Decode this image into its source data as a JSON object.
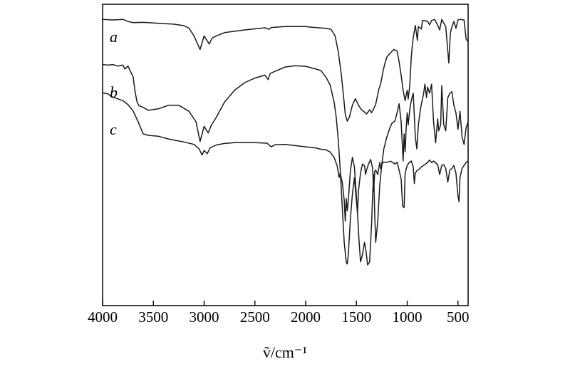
{
  "chart_data": {
    "type": "line",
    "title": "",
    "xlabel": "ṽ/cm⁻¹",
    "ylabel": "",
    "xlim": [
      4000,
      400
    ],
    "x_reversed": true,
    "x_ticks": [
      4000,
      3500,
      3000,
      2500,
      2000,
      1500,
      1000,
      500
    ],
    "ylim": [
      0,
      100
    ],
    "y_ticks_shown": false,
    "grid": false,
    "legend": "none",
    "line_color": "#1a1a1a",
    "series": [
      {
        "name": "a",
        "points": [
          [
            4000,
            95
          ],
          [
            3900,
            94.8
          ],
          [
            3800,
            95
          ],
          [
            3750,
            94.3
          ],
          [
            3700,
            93.9
          ],
          [
            3600,
            94
          ],
          [
            3400,
            93.6
          ],
          [
            3300,
            93.4
          ],
          [
            3200,
            92.9
          ],
          [
            3150,
            92.1
          ],
          [
            3100,
            89.5
          ],
          [
            3040,
            85
          ],
          [
            3000,
            89.5
          ],
          [
            2950,
            86.8
          ],
          [
            2920,
            88.8
          ],
          [
            2880,
            89.5
          ],
          [
            2800,
            90.6
          ],
          [
            2600,
            91.5
          ],
          [
            2400,
            92.2
          ],
          [
            2360,
            91.7
          ],
          [
            2340,
            92.3
          ],
          [
            2200,
            92.6
          ],
          [
            2000,
            92.6
          ],
          [
            1950,
            92.4
          ],
          [
            1800,
            92
          ],
          [
            1750,
            91.7
          ],
          [
            1710,
            89.5
          ],
          [
            1680,
            84.5
          ],
          [
            1650,
            77
          ],
          [
            1630,
            70.6
          ],
          [
            1610,
            63.5
          ],
          [
            1590,
            61.2
          ],
          [
            1570,
            62.5
          ],
          [
            1540,
            66.5
          ],
          [
            1510,
            68.7
          ],
          [
            1480,
            66.5
          ],
          [
            1450,
            65
          ],
          [
            1420,
            64.2
          ],
          [
            1400,
            63.6
          ],
          [
            1370,
            65
          ],
          [
            1350,
            64
          ],
          [
            1330,
            65.4
          ],
          [
            1310,
            66.8
          ],
          [
            1280,
            71.7
          ],
          [
            1260,
            73.8
          ],
          [
            1240,
            77.5
          ],
          [
            1220,
            80.4
          ],
          [
            1200,
            82.5
          ],
          [
            1170,
            83.7
          ],
          [
            1130,
            85
          ],
          [
            1100,
            84.5
          ],
          [
            1080,
            81
          ],
          [
            1060,
            76.5
          ],
          [
            1040,
            71.4
          ],
          [
            1020,
            68
          ],
          [
            1000,
            71.5
          ],
          [
            990,
            68.5
          ],
          [
            975,
            73
          ],
          [
            960,
            82.3
          ],
          [
            950,
            86
          ],
          [
            940,
            89
          ],
          [
            920,
            93
          ],
          [
            900,
            88
          ],
          [
            890,
            92.6
          ],
          [
            860,
            91.8
          ],
          [
            850,
            94.6
          ],
          [
            800,
            94.4
          ],
          [
            780,
            93.2
          ],
          [
            760,
            94.6
          ],
          [
            730,
            95
          ],
          [
            700,
            93
          ],
          [
            680,
            91.5
          ],
          [
            660,
            95
          ],
          [
            620,
            92.6
          ],
          [
            600,
            84.5
          ],
          [
            590,
            80.5
          ],
          [
            575,
            90.5
          ],
          [
            560,
            92.4
          ],
          [
            540,
            94.3
          ],
          [
            520,
            92
          ],
          [
            500,
            94.8
          ],
          [
            480,
            95
          ],
          [
            440,
            94.8
          ],
          [
            420,
            88.5
          ],
          [
            400,
            87.5
          ]
        ]
      },
      {
        "name": "b",
        "points": [
          [
            4000,
            80
          ],
          [
            3950,
            79.8
          ],
          [
            3900,
            80
          ],
          [
            3850,
            79.5
          ],
          [
            3800,
            79.8
          ],
          [
            3780,
            78.5
          ],
          [
            3750,
            79.5
          ],
          [
            3730,
            78
          ],
          [
            3700,
            76
          ],
          [
            3680,
            71
          ],
          [
            3660,
            67.5
          ],
          [
            3640,
            66.3
          ],
          [
            3600,
            65.8
          ],
          [
            3550,
            64.8
          ],
          [
            3450,
            65.3
          ],
          [
            3350,
            66.5
          ],
          [
            3250,
            66.5
          ],
          [
            3150,
            64.5
          ],
          [
            3080,
            61
          ],
          [
            3040,
            54.5
          ],
          [
            3000,
            59.5
          ],
          [
            2960,
            57.3
          ],
          [
            2930,
            59.8
          ],
          [
            2880,
            62.5
          ],
          [
            2800,
            67.5
          ],
          [
            2700,
            71.5
          ],
          [
            2600,
            74
          ],
          [
            2500,
            75.5
          ],
          [
            2400,
            76.5
          ],
          [
            2370,
            75
          ],
          [
            2350,
            77
          ],
          [
            2300,
            77.8
          ],
          [
            2200,
            79.2
          ],
          [
            2100,
            79.6
          ],
          [
            2000,
            79.4
          ],
          [
            1900,
            78.5
          ],
          [
            1850,
            78
          ],
          [
            1800,
            75.8
          ],
          [
            1760,
            73.3
          ],
          [
            1720,
            67.6
          ],
          [
            1700,
            62.7
          ],
          [
            1680,
            55.5
          ],
          [
            1660,
            45.5
          ],
          [
            1640,
            33
          ],
          [
            1620,
            21
          ],
          [
            1600,
            14.3
          ],
          [
            1590,
            13.8
          ],
          [
            1580,
            17
          ],
          [
            1560,
            28.5
          ],
          [
            1540,
            37
          ],
          [
            1520,
            42.4
          ],
          [
            1510,
            38.5
          ],
          [
            1490,
            31
          ],
          [
            1475,
            22
          ],
          [
            1460,
            14.5
          ],
          [
            1440,
            17
          ],
          [
            1420,
            21
          ],
          [
            1405,
            18
          ],
          [
            1390,
            13.5
          ],
          [
            1370,
            14.5
          ],
          [
            1350,
            27.5
          ],
          [
            1340,
            37
          ],
          [
            1330,
            43.5
          ],
          [
            1320,
            30.5
          ],
          [
            1310,
            21
          ],
          [
            1290,
            28
          ],
          [
            1270,
            40
          ],
          [
            1250,
            47
          ],
          [
            1230,
            52
          ],
          [
            1200,
            56
          ],
          [
            1170,
            59
          ],
          [
            1150,
            60.5
          ],
          [
            1120,
            61.3
          ],
          [
            1100,
            64
          ],
          [
            1080,
            67
          ],
          [
            1060,
            61
          ],
          [
            1050,
            54.5
          ],
          [
            1040,
            48
          ],
          [
            1030,
            57
          ],
          [
            1020,
            51
          ],
          [
            1010,
            59
          ],
          [
            1000,
            64
          ],
          [
            990,
            60
          ],
          [
            975,
            65
          ],
          [
            960,
            68
          ],
          [
            940,
            70.5
          ],
          [
            920,
            56
          ],
          [
            905,
            52
          ],
          [
            890,
            60
          ],
          [
            870,
            65
          ],
          [
            860,
            67
          ],
          [
            840,
            70
          ],
          [
            825,
            73.5
          ],
          [
            810,
            69
          ],
          [
            800,
            72.5
          ],
          [
            780,
            70.5
          ],
          [
            760,
            73.5
          ],
          [
            740,
            61
          ],
          [
            720,
            54
          ],
          [
            700,
            62
          ],
          [
            690,
            58
          ],
          [
            670,
            60
          ],
          [
            660,
            73
          ],
          [
            640,
            60
          ],
          [
            620,
            58
          ],
          [
            600,
            69
          ],
          [
            580,
            70.5
          ],
          [
            560,
            71
          ],
          [
            540,
            66.5
          ],
          [
            520,
            64
          ],
          [
            500,
            58.5
          ],
          [
            480,
            64.5
          ],
          [
            460,
            56
          ],
          [
            440,
            53.5
          ],
          [
            420,
            59
          ],
          [
            400,
            61
          ]
        ]
      },
      {
        "name": "c",
        "points": [
          [
            4000,
            70.6
          ],
          [
            3950,
            70.3
          ],
          [
            3900,
            69.2
          ],
          [
            3850,
            68.6
          ],
          [
            3800,
            68
          ],
          [
            3750,
            66.7
          ],
          [
            3700,
            64.6
          ],
          [
            3650,
            61
          ],
          [
            3600,
            57
          ],
          [
            3550,
            56.5
          ],
          [
            3450,
            56.2
          ],
          [
            3350,
            55.3
          ],
          [
            3200,
            54.3
          ],
          [
            3100,
            53.5
          ],
          [
            3050,
            52
          ],
          [
            3020,
            50
          ],
          [
            3000,
            51.5
          ],
          [
            2970,
            50.4
          ],
          [
            2940,
            52.4
          ],
          [
            2880,
            53.3
          ],
          [
            2800,
            53.8
          ],
          [
            2700,
            54.1
          ],
          [
            2500,
            54.1
          ],
          [
            2380,
            53.9
          ],
          [
            2340,
            52.7
          ],
          [
            2300,
            53.4
          ],
          [
            2200,
            53.5
          ],
          [
            2000,
            52.7
          ],
          [
            1900,
            52.3
          ],
          [
            1850,
            51.9
          ],
          [
            1800,
            51.7
          ],
          [
            1760,
            51
          ],
          [
            1720,
            49.2
          ],
          [
            1690,
            46.4
          ],
          [
            1670,
            42.5
          ],
          [
            1660,
            44
          ],
          [
            1640,
            41
          ],
          [
            1620,
            35
          ],
          [
            1610,
            28
          ],
          [
            1600,
            35.5
          ],
          [
            1590,
            31.5
          ],
          [
            1580,
            35
          ],
          [
            1560,
            44.5
          ],
          [
            1540,
            49.2
          ],
          [
            1520,
            46
          ],
          [
            1500,
            36
          ],
          [
            1490,
            30.5
          ],
          [
            1480,
            38
          ],
          [
            1460,
            44
          ],
          [
            1440,
            47
          ],
          [
            1420,
            46.4
          ],
          [
            1410,
            43.5
          ],
          [
            1400,
            45
          ],
          [
            1380,
            47
          ],
          [
            1360,
            48.5
          ],
          [
            1340,
            45.5
          ],
          [
            1330,
            38
          ],
          [
            1320,
            44.5
          ],
          [
            1310,
            45
          ],
          [
            1290,
            43.5
          ],
          [
            1270,
            47.5
          ],
          [
            1260,
            45.3
          ],
          [
            1240,
            47.6
          ],
          [
            1200,
            47.6
          ],
          [
            1160,
            47.9
          ],
          [
            1120,
            47
          ],
          [
            1100,
            47.6
          ],
          [
            1080,
            45
          ],
          [
            1060,
            42
          ],
          [
            1045,
            33
          ],
          [
            1030,
            32.5
          ],
          [
            1020,
            44
          ],
          [
            1000,
            46.5
          ],
          [
            980,
            47.5
          ],
          [
            960,
            48
          ],
          [
            940,
            46
          ],
          [
            930,
            40.5
          ],
          [
            920,
            44
          ],
          [
            900,
            45
          ],
          [
            880,
            45.3
          ],
          [
            860,
            46
          ],
          [
            840,
            46.5
          ],
          [
            800,
            47.5
          ],
          [
            780,
            48.3
          ],
          [
            760,
            47.5
          ],
          [
            740,
            48
          ],
          [
            700,
            46.8
          ],
          [
            680,
            43.5
          ],
          [
            660,
            46.5
          ],
          [
            640,
            46.8
          ],
          [
            620,
            45.5
          ],
          [
            600,
            41
          ],
          [
            580,
            45
          ],
          [
            560,
            45.5
          ],
          [
            540,
            46.5
          ],
          [
            520,
            44
          ],
          [
            500,
            36.5
          ],
          [
            490,
            34.5
          ],
          [
            480,
            42.5
          ],
          [
            460,
            45.5
          ],
          [
            440,
            46.5
          ],
          [
            420,
            47.5
          ],
          [
            400,
            48
          ]
        ]
      }
    ]
  }
}
